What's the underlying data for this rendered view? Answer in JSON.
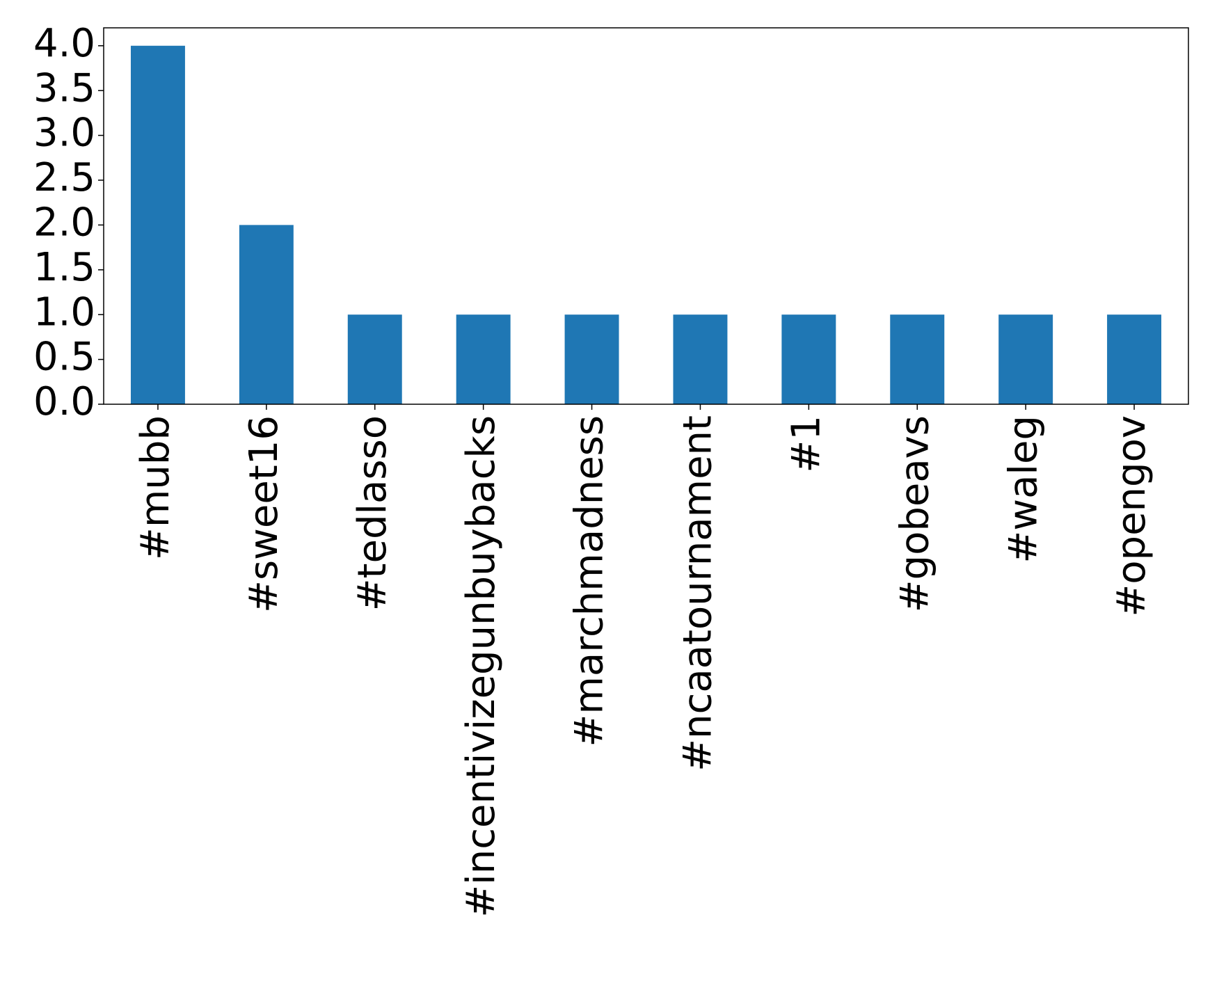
{
  "chart_data": {
    "type": "bar",
    "categories": [
      "#mubb",
      "#sweet16",
      "#tedlasso",
      "#incentivizegunbuybacks",
      "#marchmadness",
      "#ncaatournament",
      "#1",
      "#gobeavs",
      "#waleg",
      "#opengov"
    ],
    "values": [
      4,
      2,
      1,
      1,
      1,
      1,
      1,
      1,
      1,
      1
    ],
    "color": "#1f77b4",
    "ylim": [
      0,
      4.2
    ],
    "yticks": [
      {
        "value": 0,
        "label": "0.0"
      },
      {
        "value": 0.5,
        "label": "0.5"
      },
      {
        "value": 1,
        "label": "1.0"
      },
      {
        "value": 1.5,
        "label": "1.5"
      },
      {
        "value": 2,
        "label": "2.0"
      },
      {
        "value": 2.5,
        "label": "2.5"
      },
      {
        "value": 3,
        "label": "3.0"
      },
      {
        "value": 3.5,
        "label": "3.5"
      },
      {
        "value": 4,
        "label": "4.0"
      }
    ],
    "grid": false
  }
}
